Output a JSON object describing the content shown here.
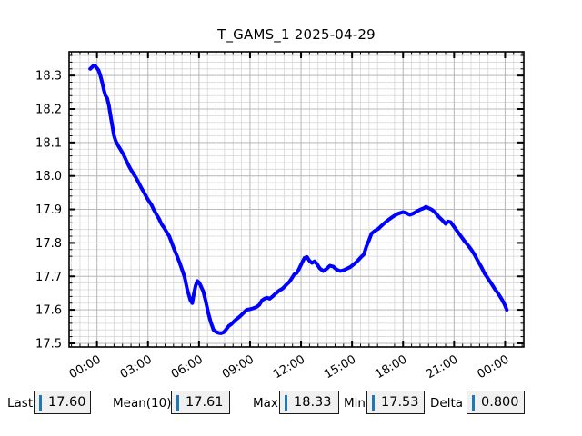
{
  "chart_data": {
    "type": "line",
    "title": "T_GAMS_1 2025-04-29",
    "xlabel": "",
    "ylabel": "",
    "x_tick_hours": [
      0,
      3,
      6,
      9,
      12,
      15,
      18,
      21,
      24
    ],
    "x_tick_labels": [
      "00:00",
      "03:00",
      "06:00",
      "09:00",
      "12:00",
      "15:00",
      "18:00",
      "21:00",
      "00:00"
    ],
    "y_ticks": [
      17.5,
      17.6,
      17.7,
      17.8,
      17.9,
      18.0,
      18.1,
      18.2,
      18.3
    ],
    "y_tick_labels": [
      "17.5",
      "17.6",
      "17.7",
      "17.8",
      "17.9",
      "18.0",
      "18.1",
      "18.2",
      "18.3"
    ],
    "xlim": [
      -1.64,
      25.1
    ],
    "ylim": [
      17.489,
      18.371
    ],
    "x_minor_step_hours": 0.5,
    "y_minor_step": 0.02,
    "grid": "both",
    "legend": "none",
    "series": [
      {
        "name": "T_GAMS_1",
        "color": "#0000ff",
        "points": [
          [
            -0.4,
            18.32
          ],
          [
            -0.3,
            18.325
          ],
          [
            -0.2,
            18.33
          ],
          [
            -0.1,
            18.328
          ],
          [
            0.0,
            18.322
          ],
          [
            0.1,
            18.315
          ],
          [
            0.2,
            18.3
          ],
          [
            0.3,
            18.28
          ],
          [
            0.4,
            18.258
          ],
          [
            0.5,
            18.24
          ],
          [
            0.6,
            18.232
          ],
          [
            0.7,
            18.21
          ],
          [
            0.8,
            18.18
          ],
          [
            0.9,
            18.15
          ],
          [
            1.0,
            18.12
          ],
          [
            1.1,
            18.105
          ],
          [
            1.25,
            18.09
          ],
          [
            1.4,
            18.078
          ],
          [
            1.55,
            18.065
          ],
          [
            1.7,
            18.048
          ],
          [
            1.85,
            18.032
          ],
          [
            2.0,
            18.018
          ],
          [
            2.15,
            18.006
          ],
          [
            2.3,
            17.994
          ],
          [
            2.45,
            17.98
          ],
          [
            2.6,
            17.965
          ],
          [
            2.75,
            17.952
          ],
          [
            2.9,
            17.938
          ],
          [
            3.05,
            17.925
          ],
          [
            3.2,
            17.914
          ],
          [
            3.35,
            17.898
          ],
          [
            3.5,
            17.885
          ],
          [
            3.65,
            17.872
          ],
          [
            3.8,
            17.856
          ],
          [
            3.95,
            17.845
          ],
          [
            4.1,
            17.832
          ],
          [
            4.25,
            17.82
          ],
          [
            4.4,
            17.8
          ],
          [
            4.55,
            17.78
          ],
          [
            4.7,
            17.762
          ],
          [
            4.85,
            17.742
          ],
          [
            5.0,
            17.72
          ],
          [
            5.15,
            17.698
          ],
          [
            5.3,
            17.662
          ],
          [
            5.4,
            17.645
          ],
          [
            5.5,
            17.628
          ],
          [
            5.6,
            17.62
          ],
          [
            5.7,
            17.648
          ],
          [
            5.8,
            17.672
          ],
          [
            5.9,
            17.686
          ],
          [
            6.0,
            17.682
          ],
          [
            6.1,
            17.672
          ],
          [
            6.25,
            17.655
          ],
          [
            6.4,
            17.625
          ],
          [
            6.55,
            17.59
          ],
          [
            6.7,
            17.562
          ],
          [
            6.85,
            17.54
          ],
          [
            7.0,
            17.534
          ],
          [
            7.15,
            17.531
          ],
          [
            7.3,
            17.53
          ],
          [
            7.45,
            17.533
          ],
          [
            7.6,
            17.542
          ],
          [
            7.75,
            17.552
          ],
          [
            7.9,
            17.557
          ],
          [
            8.05,
            17.565
          ],
          [
            8.2,
            17.572
          ],
          [
            8.4,
            17.58
          ],
          [
            8.6,
            17.59
          ],
          [
            8.8,
            17.6
          ],
          [
            9.0,
            17.602
          ],
          [
            9.2,
            17.605
          ],
          [
            9.4,
            17.609
          ],
          [
            9.55,
            17.615
          ],
          [
            9.7,
            17.628
          ],
          [
            9.85,
            17.633
          ],
          [
            10.0,
            17.636
          ],
          [
            10.15,
            17.633
          ],
          [
            10.3,
            17.639
          ],
          [
            10.5,
            17.648
          ],
          [
            10.7,
            17.657
          ],
          [
            10.9,
            17.663
          ],
          [
            11.1,
            17.673
          ],
          [
            11.3,
            17.683
          ],
          [
            11.45,
            17.694
          ],
          [
            11.6,
            17.706
          ],
          [
            11.75,
            17.71
          ],
          [
            11.9,
            17.724
          ],
          [
            12.05,
            17.74
          ],
          [
            12.2,
            17.755
          ],
          [
            12.35,
            17.758
          ],
          [
            12.5,
            17.746
          ],
          [
            12.65,
            17.74
          ],
          [
            12.8,
            17.745
          ],
          [
            12.95,
            17.736
          ],
          [
            13.1,
            17.724
          ],
          [
            13.3,
            17.716
          ],
          [
            13.5,
            17.722
          ],
          [
            13.7,
            17.732
          ],
          [
            13.9,
            17.729
          ],
          [
            14.1,
            17.72
          ],
          [
            14.3,
            17.716
          ],
          [
            14.5,
            17.718
          ],
          [
            14.7,
            17.723
          ],
          [
            14.9,
            17.728
          ],
          [
            15.1,
            17.736
          ],
          [
            15.3,
            17.745
          ],
          [
            15.5,
            17.756
          ],
          [
            15.7,
            17.766
          ],
          [
            15.85,
            17.79
          ],
          [
            16.0,
            17.808
          ],
          [
            16.15,
            17.828
          ],
          [
            16.35,
            17.836
          ],
          [
            16.55,
            17.842
          ],
          [
            16.75,
            17.852
          ],
          [
            16.95,
            17.861
          ],
          [
            17.2,
            17.871
          ],
          [
            17.45,
            17.88
          ],
          [
            17.7,
            17.887
          ],
          [
            18.0,
            17.892
          ],
          [
            18.2,
            17.889
          ],
          [
            18.4,
            17.884
          ],
          [
            18.6,
            17.888
          ],
          [
            18.8,
            17.894
          ],
          [
            19.0,
            17.899
          ],
          [
            19.2,
            17.903
          ],
          [
            19.35,
            17.908
          ],
          [
            19.5,
            17.904
          ],
          [
            19.7,
            17.899
          ],
          [
            19.9,
            17.89
          ],
          [
            20.1,
            17.878
          ],
          [
            20.3,
            17.868
          ],
          [
            20.5,
            17.857
          ],
          [
            20.65,
            17.864
          ],
          [
            20.8,
            17.862
          ],
          [
            21.0,
            17.848
          ],
          [
            21.2,
            17.834
          ],
          [
            21.4,
            17.82
          ],
          [
            21.6,
            17.806
          ],
          [
            21.8,
            17.794
          ],
          [
            22.0,
            17.781
          ],
          [
            22.2,
            17.765
          ],
          [
            22.4,
            17.746
          ],
          [
            22.6,
            17.728
          ],
          [
            22.8,
            17.708
          ],
          [
            23.0,
            17.693
          ],
          [
            23.2,
            17.678
          ],
          [
            23.4,
            17.662
          ],
          [
            23.6,
            17.648
          ],
          [
            23.8,
            17.632
          ],
          [
            23.95,
            17.618
          ],
          [
            24.1,
            17.6
          ]
        ]
      }
    ]
  },
  "stats": {
    "last": {
      "label": "Last",
      "value": "17.60"
    },
    "mean": {
      "label": "Mean(10)",
      "value": "17.61"
    },
    "max": {
      "label": "Max",
      "value": "18.33"
    },
    "min": {
      "label": "Min",
      "value": "17.53"
    },
    "delta": {
      "label": "Delta",
      "value": "0.800"
    }
  },
  "colors": {
    "line": "#0000ff",
    "grid_minor": "#d6d6d6",
    "grid_major": "#b9b9b9",
    "spine": "#000000",
    "tick": "#000000",
    "background": "#ffffff",
    "textbox_bg": "#f0f0f0",
    "textbox_border": "#1a1a1a",
    "textbox_caret": "#1f77b4"
  }
}
